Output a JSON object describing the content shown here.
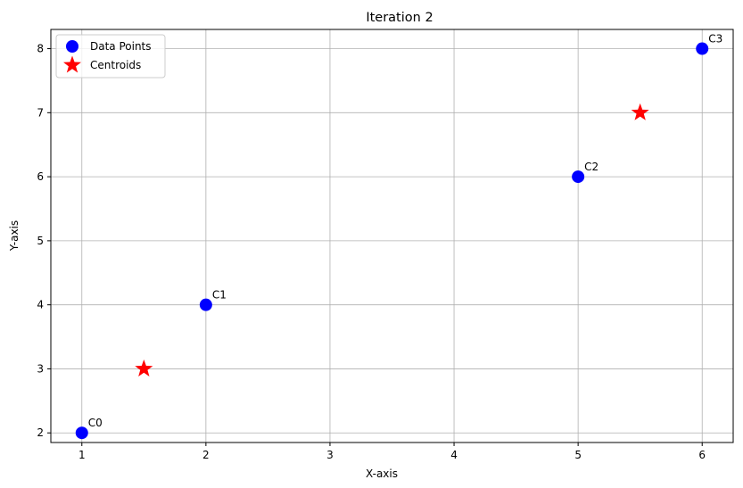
{
  "chart_data": {
    "type": "scatter",
    "title": "Iteration 2",
    "xlabel": "X-axis",
    "ylabel": "Y-axis",
    "xlim": [
      0.75,
      6.25
    ],
    "ylim": [
      1.85,
      8.3
    ],
    "xticks": [
      1,
      2,
      3,
      4,
      5,
      6
    ],
    "yticks": [
      2,
      3,
      4,
      5,
      6,
      7,
      8
    ],
    "grid": true,
    "legend_position": "top-left",
    "series": [
      {
        "name": "Data Points",
        "marker": "circle",
        "color": "#0000ff",
        "points": [
          {
            "x": 1,
            "y": 2,
            "label": "C0"
          },
          {
            "x": 2,
            "y": 4,
            "label": "C1"
          },
          {
            "x": 5,
            "y": 6,
            "label": "C2"
          },
          {
            "x": 6,
            "y": 8,
            "label": "C3"
          }
        ]
      },
      {
        "name": "Centroids",
        "marker": "star",
        "color": "#ff0000",
        "points": [
          {
            "x": 1.5,
            "y": 3
          },
          {
            "x": 5.5,
            "y": 7
          }
        ]
      }
    ]
  }
}
